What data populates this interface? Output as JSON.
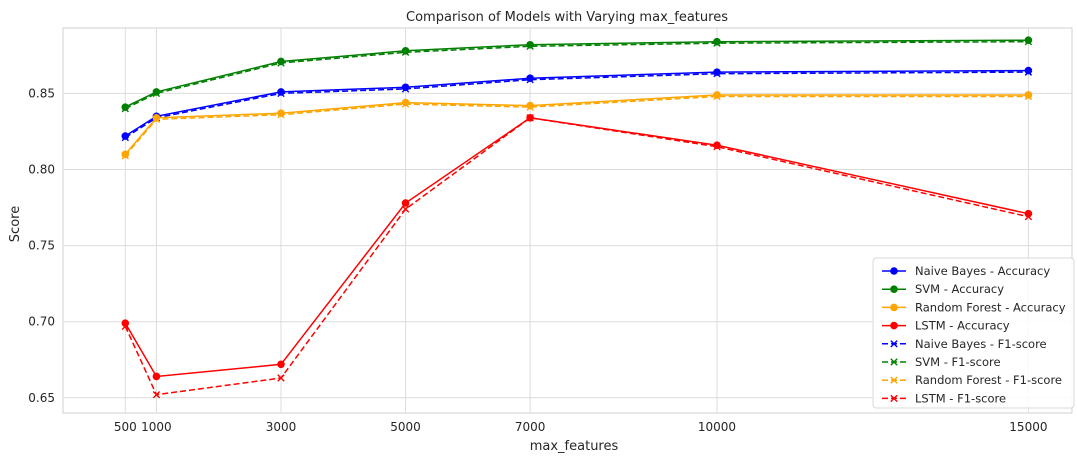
{
  "chart_data": {
    "type": "line",
    "title": "Comparison of Models with Varying max_features",
    "xlabel": "max_features",
    "ylabel": "Score",
    "x": [
      500,
      1000,
      3000,
      5000,
      7000,
      10000,
      15000
    ],
    "x_ticks": [
      "500",
      "1000",
      "3000",
      "5000",
      "7000",
      "10000",
      "15000"
    ],
    "y_ticks": [
      "0.65",
      "0.70",
      "0.75",
      "0.80",
      "0.85"
    ],
    "xlim": [
      -500,
      15700
    ],
    "ylim": [
      0.64,
      0.893
    ],
    "grid": true,
    "legend_position": "lower right",
    "series": [
      {
        "name": "Naive Bayes - Accuracy",
        "color": "#0000ff",
        "linestyle": "solid",
        "marker": "circle",
        "values": [
          0.822,
          0.835,
          0.851,
          0.854,
          0.86,
          0.864,
          0.865
        ]
      },
      {
        "name": "SVM - Accuracy",
        "color": "#008000",
        "linestyle": "solid",
        "marker": "circle",
        "values": [
          0.841,
          0.851,
          0.871,
          0.878,
          0.882,
          0.884,
          0.885
        ]
      },
      {
        "name": "Random Forest - Accuracy",
        "color": "#ffa500",
        "linestyle": "solid",
        "marker": "circle",
        "values": [
          0.81,
          0.834,
          0.837,
          0.844,
          0.842,
          0.849,
          0.849
        ]
      },
      {
        "name": "LSTM - Accuracy",
        "color": "#ff0000",
        "linestyle": "solid",
        "marker": "circle",
        "values": [
          0.699,
          0.664,
          0.672,
          0.778,
          0.834,
          0.816,
          0.771
        ]
      },
      {
        "name": "Naive Bayes - F1-score",
        "color": "#0000ff",
        "linestyle": "dashed",
        "marker": "x",
        "values": [
          0.821,
          0.834,
          0.85,
          0.853,
          0.859,
          0.863,
          0.864
        ]
      },
      {
        "name": "SVM - F1-score",
        "color": "#008000",
        "linestyle": "dashed",
        "marker": "x",
        "values": [
          0.84,
          0.85,
          0.87,
          0.877,
          0.881,
          0.883,
          0.884
        ]
      },
      {
        "name": "Random Forest - F1-score",
        "color": "#ffa500",
        "linestyle": "dashed",
        "marker": "x",
        "values": [
          0.809,
          0.833,
          0.836,
          0.843,
          0.841,
          0.848,
          0.848
        ]
      },
      {
        "name": "LSTM - F1-score",
        "color": "#ff0000",
        "linestyle": "dashed",
        "marker": "x",
        "values": [
          0.697,
          0.652,
          0.663,
          0.774,
          0.834,
          0.815,
          0.769
        ]
      }
    ]
  }
}
